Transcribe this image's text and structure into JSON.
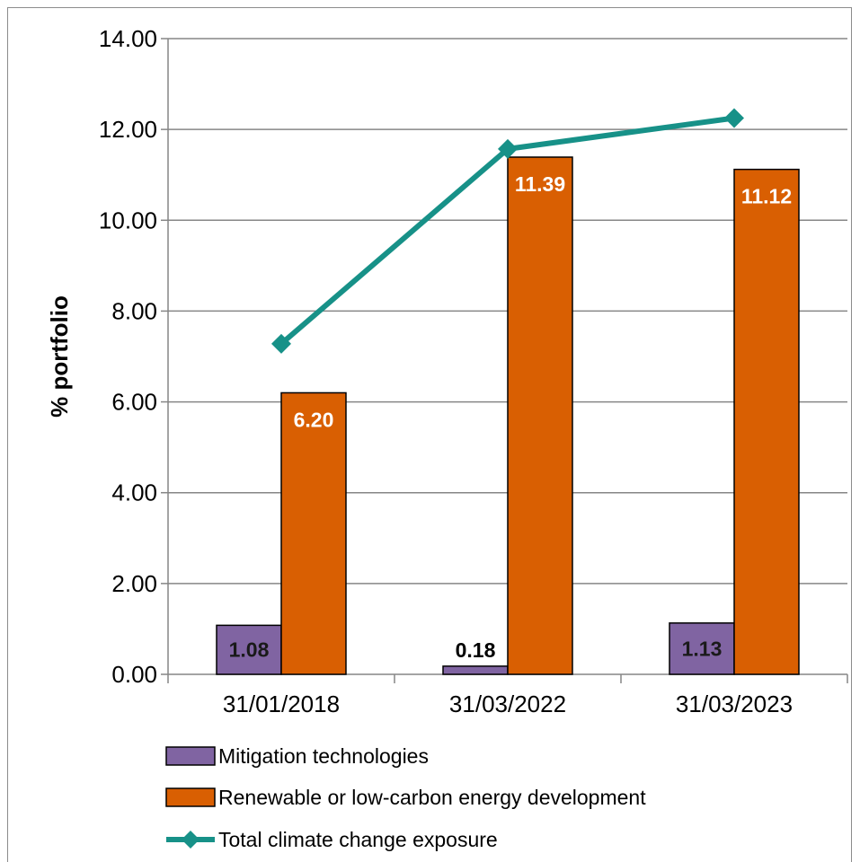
{
  "chart_data": {
    "type": "bar",
    "categories": [
      "31/01/2018",
      "31/03/2022",
      "31/03/2023"
    ],
    "ylabel": "% portfolio",
    "xlabel": "",
    "ylim": [
      0,
      14
    ],
    "y_ticks": [
      "0.00",
      "2.00",
      "4.00",
      "6.00",
      "8.00",
      "10.00",
      "12.00",
      "14.00"
    ],
    "grid": true,
    "legend_position": "bottom",
    "series": [
      {
        "name": "Mitigation technologies",
        "kind": "bar",
        "color": "#8064a2",
        "values": [
          1.08,
          0.18,
          1.13
        ],
        "labels": [
          "1.08",
          "0.18",
          "1.13"
        ]
      },
      {
        "name": "Renewable or low-carbon energy development",
        "kind": "bar",
        "color": "#d95f02",
        "values": [
          6.2,
          11.39,
          11.12
        ],
        "labels": [
          "6.20",
          "11.39",
          "11.12"
        ]
      },
      {
        "name": "Total climate change exposure",
        "kind": "line",
        "color": "#179188",
        "values": [
          7.28,
          11.57,
          12.25
        ]
      }
    ]
  }
}
